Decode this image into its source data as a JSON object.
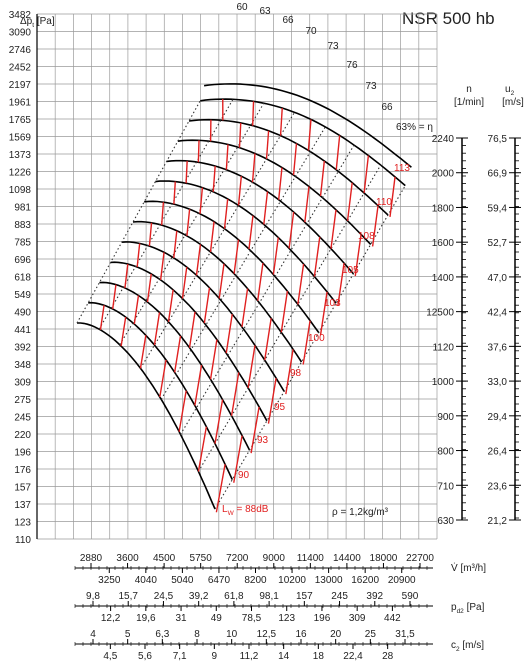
{
  "chart_data": {
    "type": "line",
    "title": "NSR 500 hb",
    "y_left_label": "Δp",
    "y_left_label_sub": "t",
    "y_left_unit": "[Pa]",
    "y_left_ticks": [
      "3482",
      "3090",
      "2746",
      "2452",
      "2197",
      "1961",
      "1765",
      "1569",
      "1373",
      "1226",
      "1098",
      "981",
      "883",
      "785",
      "696",
      "618",
      "549",
      "490",
      "441",
      "392",
      "348",
      "309",
      "275",
      "245",
      "220",
      "196",
      "176",
      "157",
      "137",
      "123",
      "110"
    ],
    "n_label": "n",
    "n_unit": "[1/min]",
    "n_ticks": [
      "2240",
      "2000",
      "1800",
      "1600",
      "1400",
      "12500",
      "1120",
      "1000",
      "900",
      "800",
      "710",
      "630"
    ],
    "u2_label": "u",
    "u2_sub": "2",
    "u2_unit": "[m/s]",
    "u2_ticks": [
      "76,5",
      "66,9",
      "59,4",
      "52,7",
      "47,0",
      "42,4",
      "37,6",
      "33,0",
      "29,4",
      "26,4",
      "23,6",
      "21,2"
    ],
    "eff_labels": [
      "60",
      "63",
      "66",
      "70",
      "73",
      "76",
      "73",
      "66"
    ],
    "eff_end_label": "63% = η",
    "sound_labels": [
      "113",
      "110",
      "108",
      "105",
      "103",
      "100",
      "98",
      "95",
      "93",
      "90"
    ],
    "sound_first": "L",
    "sound_first_sub": "W",
    "sound_first_value": " = 88dB",
    "density_label": "ρ = 1,2kg/m³",
    "flow_axis": {
      "label": "V̇ [m³/h]",
      "top_ticks": [
        "2880",
        "3600",
        "4500",
        "5750",
        "7200",
        "9000",
        "11400",
        "14400",
        "18000",
        "22700"
      ],
      "bottom_ticks": [
        "3250",
        "4040",
        "5040",
        "6470",
        "8200",
        "10200",
        "13000",
        "16200",
        "20900"
      ]
    },
    "pd2_axis": {
      "label": "p",
      "label_sub": "d2",
      "unit": " [Pa]",
      "top_ticks": [
        "9,8",
        "15,7",
        "24,5",
        "39,2",
        "61,8",
        "98,1",
        "157",
        "245",
        "392",
        "590"
      ],
      "bottom_ticks": [
        "12,2",
        "19,6",
        "31",
        "49",
        "78,5",
        "123",
        "196",
        "309",
        "442"
      ]
    },
    "c2_axis": {
      "label": "c",
      "label_sub": "2",
      "unit": " [m/s]",
      "top_ticks": [
        "4",
        "5",
        "6,3",
        "8",
        "10",
        "12,5",
        "16",
        "20",
        "25",
        "31,5"
      ],
      "bottom_ticks": [
        "4,5",
        "5,6",
        "7,1",
        "9",
        "11,2",
        "14",
        "18",
        "22,4",
        "28"
      ]
    },
    "grid": true,
    "colors": {
      "curve": "#000000",
      "sound": "#e02020",
      "grid": "#9a9a9a",
      "text": "#222222"
    }
  }
}
